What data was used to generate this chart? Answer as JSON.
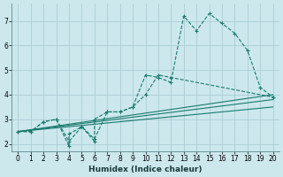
{
  "xlabel": "Humidex (Indice chaleur)",
  "bg_color": "#cce8ed",
  "grid_color": "#aacdd4",
  "line_color": "#1a7a6e",
  "xlim": [
    -0.5,
    20.5
  ],
  "ylim": [
    1.7,
    7.7
  ],
  "xticks": [
    0,
    1,
    2,
    3,
    4,
    5,
    6,
    7,
    8,
    9,
    10,
    11,
    12,
    13,
    14,
    15,
    16,
    17,
    18,
    19,
    20
  ],
  "yticks": [
    2,
    3,
    4,
    5,
    6,
    7
  ],
  "series": [
    {
      "x": [
        0,
        1,
        2,
        3,
        4,
        4,
        5,
        6,
        6,
        7,
        8,
        9,
        10,
        11,
        12,
        20
      ],
      "y": [
        2.5,
        2.5,
        2.9,
        3.0,
        1.9,
        2.4,
        2.7,
        2.1,
        3.0,
        3.3,
        3.3,
        3.5,
        4.0,
        4.8,
        4.7,
        3.9
      ],
      "marker": "+",
      "markersize": 3,
      "linestyle": "--",
      "linewidth": 0.8
    },
    {
      "x": [
        0,
        1,
        2,
        3,
        4,
        5,
        6,
        7,
        8,
        9,
        10,
        11,
        12,
        13,
        14,
        15,
        16,
        17,
        18,
        19,
        20
      ],
      "y": [
        2.5,
        2.5,
        2.9,
        3.0,
        2.1,
        2.7,
        2.2,
        3.3,
        3.3,
        3.5,
        4.8,
        4.7,
        4.5,
        7.2,
        6.6,
        7.3,
        6.9,
        6.5,
        5.8,
        4.3,
        3.9
      ],
      "marker": "+",
      "markersize": 3,
      "linestyle": "--",
      "linewidth": 0.8
    },
    {
      "x": [
        0,
        20
      ],
      "y": [
        2.5,
        3.5
      ],
      "marker": null,
      "markersize": 0,
      "linestyle": "-",
      "linewidth": 0.8
    },
    {
      "x": [
        0,
        20
      ],
      "y": [
        2.5,
        4.0
      ],
      "marker": null,
      "markersize": 0,
      "linestyle": "-",
      "linewidth": 0.8
    },
    {
      "x": [
        0,
        20
      ],
      "y": [
        2.5,
        3.8
      ],
      "marker": null,
      "markersize": 0,
      "linestyle": "-",
      "linewidth": 0.8
    }
  ]
}
